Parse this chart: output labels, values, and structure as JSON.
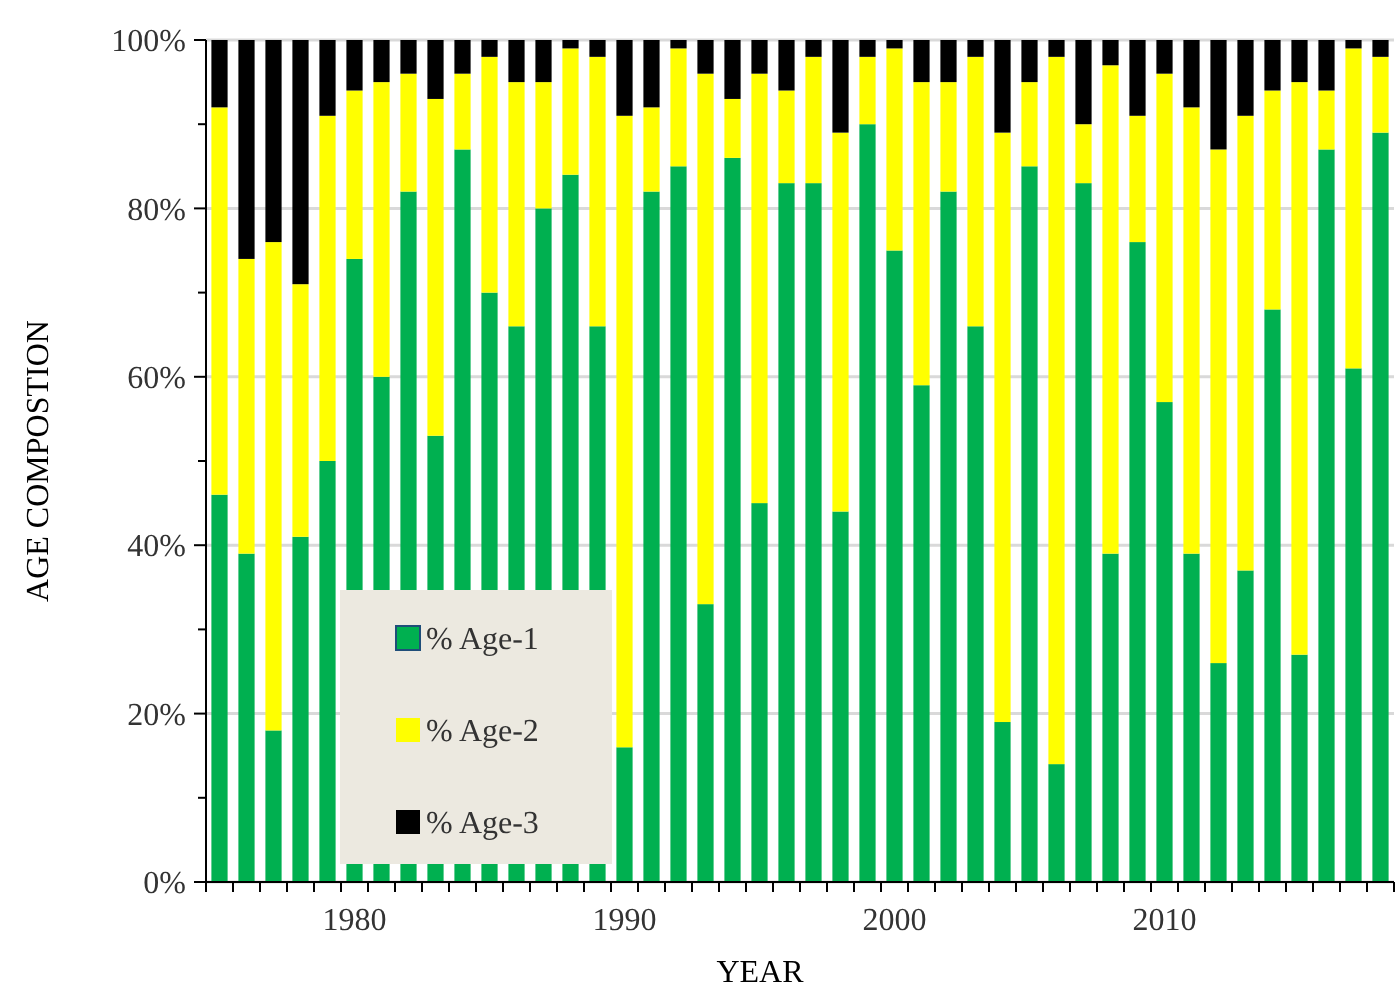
{
  "chart_data": {
    "type": "bar",
    "stacked": true,
    "xlabel": "YEAR",
    "ylabel": "AGE COMPOSTION",
    "categories": [
      null,
      null,
      null,
      null,
      null,
      "1980",
      null,
      null,
      null,
      null,
      null,
      null,
      null,
      null,
      null,
      "1990",
      null,
      null,
      null,
      null,
      null,
      null,
      null,
      null,
      null,
      "2000",
      null,
      null,
      null,
      null,
      null,
      null,
      null,
      null,
      null,
      "2010",
      null,
      null,
      null,
      null,
      null,
      null,
      null,
      null
    ],
    "series": [
      {
        "name": "% Age-1",
        "color": "#00b050",
        "values": [
          46,
          39,
          18,
          41,
          50,
          74,
          60,
          82,
          53,
          87,
          70,
          66,
          80,
          84,
          66,
          16,
          82,
          85,
          33,
          86,
          45,
          83,
          83,
          44,
          90,
          75,
          59,
          82,
          66,
          19,
          85,
          14,
          83,
          39,
          76,
          57,
          39,
          26,
          37,
          68,
          27,
          87,
          61,
          89
        ]
      },
      {
        "name": "% Age-2",
        "color": "#ffff00",
        "values": [
          46,
          35,
          58,
          30,
          41,
          20,
          35,
          14,
          40,
          9,
          28,
          29,
          15,
          15,
          32,
          75,
          10,
          14,
          63,
          7,
          51,
          11,
          15,
          45,
          8,
          24,
          36,
          13,
          32,
          70,
          10,
          84,
          7,
          58,
          15,
          39,
          53,
          61,
          54,
          26,
          68,
          7,
          38,
          9
        ]
      },
      {
        "name": "% Age-3",
        "color": "#000000",
        "values": [
          8,
          26,
          24,
          29,
          9,
          6,
          5,
          4,
          7,
          4,
          2,
          5,
          5,
          1,
          2,
          9,
          8,
          1,
          4,
          7,
          4,
          6,
          2,
          11,
          2,
          1,
          5,
          5,
          2,
          11,
          5,
          2,
          10,
          3,
          9,
          4,
          8,
          13,
          9,
          6,
          5,
          6,
          1,
          2
        ]
      }
    ],
    "ylim": [
      0,
      100
    ],
    "yticks": [
      {
        "value": 0,
        "label": "0%"
      },
      {
        "value": 10,
        "label": null
      },
      {
        "value": 20,
        "label": "20%"
      },
      {
        "value": 30,
        "label": null
      },
      {
        "value": 40,
        "label": "40%"
      },
      {
        "value": 50,
        "label": null
      },
      {
        "value": 60,
        "label": "60%"
      },
      {
        "value": 70,
        "label": null
      },
      {
        "value": 80,
        "label": "80%"
      },
      {
        "value": 90,
        "label": null
      },
      {
        "value": 100,
        "label": "100%"
      }
    ],
    "grid": "y",
    "legend": "bottom left"
  }
}
